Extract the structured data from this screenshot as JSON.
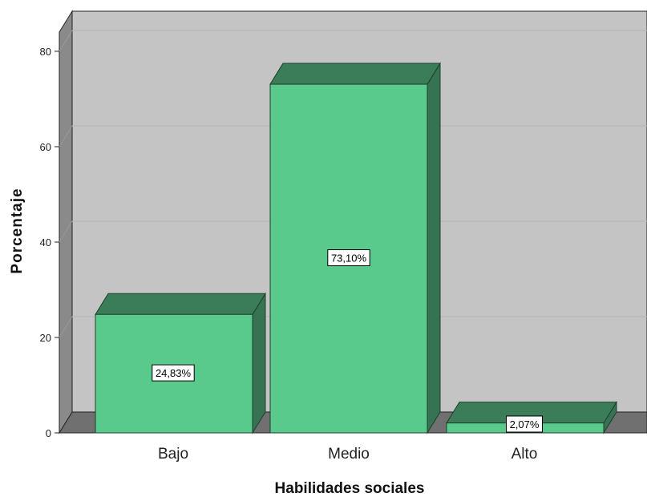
{
  "chart_data": {
    "type": "bar",
    "categories": [
      "Bajo",
      "Medio",
      "Alto"
    ],
    "values": [
      24.83,
      73.1,
      2.07
    ],
    "data_labels": [
      "24,83%",
      "73,10%",
      "2,07%"
    ],
    "xlabel": "Habilidades sociales",
    "ylabel": "Porcentaje",
    "ylim": [
      0,
      85
    ],
    "yticks": [
      "0",
      "20",
      "40",
      "60",
      "80"
    ],
    "ytick_values": [
      0,
      20,
      40,
      60,
      80
    ],
    "grid": true,
    "bar_style": "3d",
    "colors": {
      "bar_front": "#5ac98c",
      "bar_top": "#3a7d58",
      "bar_side": "#357352",
      "plot_bg": "#c4c4c4",
      "left_wall": "#8a8a8a",
      "floor": "#707070",
      "gridline": "#b6b6b6"
    }
  }
}
